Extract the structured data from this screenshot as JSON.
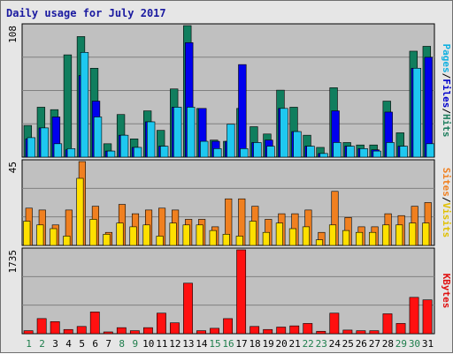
{
  "chart_data": {
    "type": "bar",
    "title": "Daily usage for July 2017",
    "categories": [
      "1",
      "2",
      "3",
      "4",
      "5",
      "6",
      "7",
      "8",
      "9",
      "10",
      "11",
      "12",
      "13",
      "14",
      "15",
      "16",
      "17",
      "18",
      "19",
      "20",
      "21",
      "22",
      "23",
      "24",
      "25",
      "26",
      "27",
      "28",
      "29",
      "30",
      "31"
    ],
    "weekend_days": [
      "1",
      "2",
      "8",
      "9",
      "15",
      "16",
      "22",
      "23",
      "29",
      "30"
    ],
    "colors": {
      "weekday_label": "#000000",
      "weekend_label": "#1e7e4c",
      "plot_bg": "#c0c0c0",
      "frame_bg": "#e6e6e6",
      "hits": "#107e5e",
      "files": "#0000ee",
      "pages": "#1ec8f0",
      "visits": "#f08020",
      "sites": "#ffe000",
      "kbytes": "#ff1010",
      "legend_hits": "#1e7e5e",
      "legend_files": "#0000cc",
      "legend_pages": "#10b0e0",
      "legend_visits": "#e0c000",
      "legend_sites": "#f08020",
      "legend_kbytes": "#e01010",
      "separator": "#000000"
    },
    "panels": [
      {
        "id": "hits-files-pages",
        "ymax_label": "108",
        "ylim": [
          0,
          108
        ],
        "legend": [
          {
            "text": "Pages",
            "key": "legend_pages"
          },
          {
            "text": "/",
            "key": "separator"
          },
          {
            "text": "Files",
            "key": "legend_files"
          },
          {
            "text": "/",
            "key": "separator"
          },
          {
            "text": "Hits",
            "key": "legend_hits"
          }
        ],
        "series": [
          {
            "name": "Hits",
            "key": "hits",
            "values": [
              26,
              41,
              39,
              84,
              99,
              73,
              11,
              35,
              15,
              38,
              22,
              56,
              108,
              40,
              14,
              13,
              40,
              25,
              19,
              55,
              41,
              18,
              8,
              57,
              12,
              10,
              10,
              46,
              20,
              87,
              91
            ]
          },
          {
            "name": "Files",
            "key": "files",
            "values": [
              15,
              24,
              33,
              6,
              67,
              46,
              5,
              18,
              8,
              29,
              9,
              41,
              94,
              40,
              13,
              13,
              76,
              12,
              14,
              40,
              21,
              9,
              3,
              38,
              9,
              7,
              6,
              37,
              9,
              73,
              82
            ]
          },
          {
            "name": "Pages",
            "key": "pages",
            "values": [
              16,
              24,
              11,
              7,
              86,
              33,
              5,
              18,
              8,
              29,
              9,
              41,
              41,
              13,
              7,
              27,
              7,
              12,
              9,
              40,
              21,
              9,
              3,
              12,
              9,
              7,
              5,
              12,
              9,
              73,
              11
            ]
          }
        ]
      },
      {
        "id": "visits-sites",
        "ymax_label": "45",
        "ylim": [
          0,
          45
        ],
        "legend": [
          {
            "text": "Sites",
            "key": "legend_sites"
          },
          {
            "text": "/",
            "key": "separator"
          },
          {
            "text": "Visits",
            "key": "legend_visits"
          }
        ],
        "series": [
          {
            "name": "Visits",
            "key": "visits",
            "values": [
              20,
              19,
              11,
              19,
              45,
              21,
              7,
              22,
              17,
              19,
              20,
              19,
              14,
              14,
              10,
              25,
              25,
              21,
              14,
              17,
              17,
              19,
              7,
              29,
              15,
              10,
              10,
              17,
              16,
              21,
              23
            ]
          },
          {
            "name": "Sites",
            "key": "sites",
            "values": [
              13,
              11,
              9,
              5,
              36,
              14,
              6,
              12,
              10,
              11,
              5,
              12,
              11,
              11,
              8,
              6,
              5,
              13,
              7,
              12,
              9,
              10,
              3,
              11,
              8,
              7,
              7,
              11,
              11,
              12,
              12
            ]
          }
        ]
      },
      {
        "id": "kbytes",
        "ymax_label": "1735",
        "ylim": [
          0,
          1735
        ],
        "legend": [
          {
            "text": "KBytes",
            "key": "legend_kbytes"
          }
        ],
        "series": [
          {
            "name": "KBytes",
            "key": "kbytes",
            "values": [
              62,
              313,
              250,
              87,
              150,
              450,
              37,
              125,
              62,
              125,
              425,
              225,
              1045,
              62,
              112,
              312,
              1735,
              150,
              87,
              137,
              162,
              212,
              50,
              425,
              75,
              62,
              62,
              412,
              212,
              752,
              700
            ]
          }
        ]
      }
    ]
  }
}
